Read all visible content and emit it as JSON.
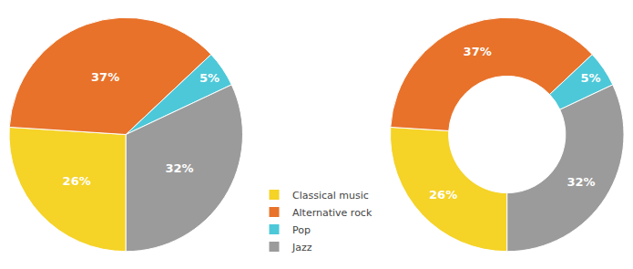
{
  "chart_data": [
    {
      "type": "pie",
      "categories": [
        "Classical music",
        "Alternative rock",
        "Pop",
        "Jazz"
      ],
      "values": [
        26,
        37,
        5,
        32
      ],
      "value_labels": [
        "26%",
        "37%",
        "5%",
        "32%"
      ],
      "colors": [
        "#f5d327",
        "#e8722a",
        "#4dc8d8",
        "#9b9b9b"
      ],
      "data_labels": true,
      "legend": "bottom"
    },
    {
      "type": "donut",
      "categories": [
        "Classical music",
        "Alternative rock",
        "Pop",
        "Jazz"
      ],
      "values": [
        26,
        37,
        5,
        32
      ],
      "value_labels": [
        "26%",
        "37%",
        "5%",
        "32%"
      ],
      "colors": [
        "#f5d327",
        "#e8722a",
        "#4dc8d8",
        "#9b9b9b"
      ],
      "data_labels": true
    }
  ]
}
